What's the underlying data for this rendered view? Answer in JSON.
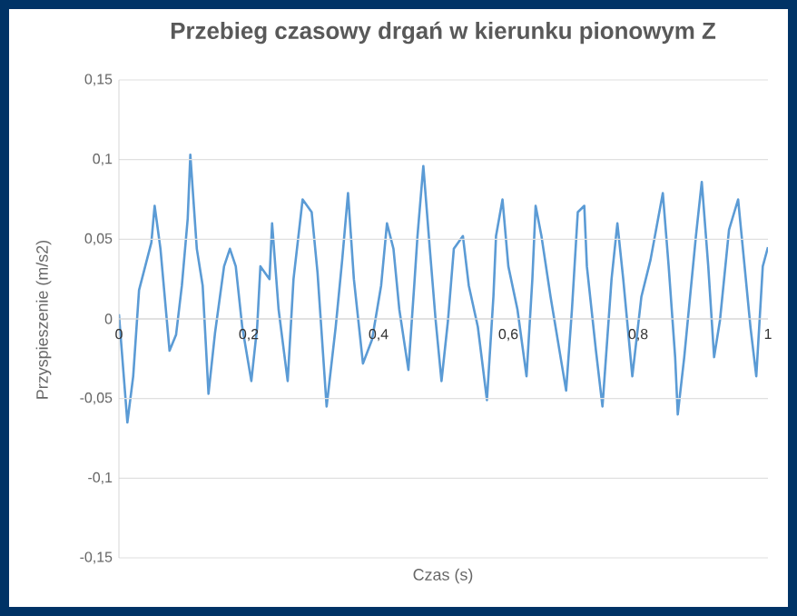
{
  "chart_data": {
    "type": "line",
    "title": "Przebieg czasowy drgań w kierunku pionowym Z",
    "xlabel": "Czas (s)",
    "ylabel": "Przyspieszenie (m/s2)",
    "xlim": [
      0,
      1
    ],
    "ylim": [
      -0.15,
      0.15
    ],
    "xticks": [
      {
        "value": 0,
        "label": "0"
      },
      {
        "value": 0.2,
        "label": "0,2"
      },
      {
        "value": 0.4,
        "label": "0,4"
      },
      {
        "value": 0.6,
        "label": "0,6"
      },
      {
        "value": 0.8,
        "label": "0,8"
      },
      {
        "value": 1,
        "label": "1"
      }
    ],
    "yticks": [
      {
        "value": -0.15,
        "label": "-0,15"
      },
      {
        "value": -0.1,
        "label": "-0,1"
      },
      {
        "value": -0.05,
        "label": "-0,05"
      },
      {
        "value": 0,
        "label": "0"
      },
      {
        "value": 0.05,
        "label": "0,05"
      },
      {
        "value": 0.1,
        "label": "0,1"
      },
      {
        "value": 0.15,
        "label": "0,15"
      }
    ],
    "grid": "y",
    "marker": "none",
    "line_style": "solid",
    "series": [
      {
        "color": "#5b9bd5",
        "x": [
          0,
          0.013,
          0.022,
          0.031,
          0.05,
          0.055,
          0.064,
          0.078,
          0.088,
          0.097,
          0.106,
          0.11,
          0.12,
          0.129,
          0.138,
          0.148,
          0.162,
          0.171,
          0.18,
          0.19,
          0.204,
          0.213,
          0.218,
          0.232,
          0.236,
          0.246,
          0.26,
          0.269,
          0.283,
          0.297,
          0.306,
          0.32,
          0.334,
          0.344,
          0.353,
          0.362,
          0.376,
          0.39,
          0.404,
          0.413,
          0.423,
          0.432,
          0.446,
          0.455,
          0.46,
          0.469,
          0.479,
          0.488,
          0.497,
          0.507,
          0.516,
          0.53,
          0.539,
          0.553,
          0.567,
          0.577,
          0.581,
          0.591,
          0.6,
          0.614,
          0.628,
          0.637,
          0.642,
          0.651,
          0.665,
          0.689,
          0.698,
          0.707,
          0.717,
          0.721,
          0.735,
          0.745,
          0.759,
          0.768,
          0.777,
          0.791,
          0.805,
          0.819,
          0.838,
          0.847,
          0.857,
          0.861,
          0.871,
          0.88,
          0.889,
          0.898,
          0.908,
          0.917,
          0.926,
          0.94,
          0.954,
          0.964,
          0.973,
          0.982,
          0.992,
          1
        ],
        "values": [
          0.003,
          -0.065,
          -0.036,
          0.018,
          0.048,
          0.071,
          0.044,
          -0.02,
          -0.01,
          0.021,
          0.063,
          0.103,
          0.044,
          0.021,
          -0.047,
          -0.009,
          0.033,
          0.044,
          0.033,
          -0.005,
          -0.039,
          -0.005,
          0.033,
          0.025,
          0.06,
          0.006,
          -0.039,
          0.025,
          0.075,
          0.067,
          0.029,
          -0.055,
          -0.005,
          0.037,
          0.079,
          0.025,
          -0.028,
          -0.013,
          0.021,
          0.06,
          0.044,
          0.006,
          -0.032,
          0.021,
          0.052,
          0.096,
          0.044,
          -0.001,
          -0.039,
          -0.001,
          0.044,
          0.052,
          0.021,
          -0.005,
          -0.051,
          0.014,
          0.052,
          0.075,
          0.033,
          0.006,
          -0.036,
          0.025,
          0.071,
          0.052,
          0.014,
          -0.045,
          0.006,
          0.067,
          0.071,
          0.033,
          -0.02,
          -0.055,
          0.025,
          0.06,
          0.025,
          -0.036,
          0.014,
          0.037,
          0.079,
          0.033,
          -0.024,
          -0.06,
          -0.024,
          0.014,
          0.052,
          0.086,
          0.033,
          -0.024,
          -0.001,
          0.056,
          0.075,
          0.033,
          -0.005,
          -0.036,
          0.033,
          0.045
        ]
      }
    ]
  }
}
